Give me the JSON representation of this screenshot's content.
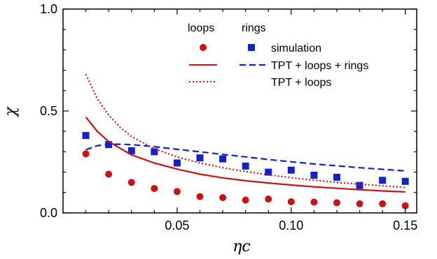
{
  "chart_data": {
    "type": "scatter",
    "xlabel": "ηc",
    "ylabel": "χ",
    "xlim": [
      0.0,
      0.155
    ],
    "ylim": [
      0.0,
      1.0
    ],
    "x_ticks": [
      0.05,
      0.1,
      0.15
    ],
    "x_tick_labels": [
      "0.05",
      "0.10",
      "0.15"
    ],
    "y_ticks": [
      0.0,
      0.5,
      1.0
    ],
    "y_tick_labels": [
      "0.0",
      "0.5",
      "1.0"
    ],
    "legend_column_headers": [
      "loops",
      "rings"
    ],
    "legend_entries": [
      "simulation",
      "TPT + loops + rings",
      "TPT + loops"
    ],
    "colors": {
      "loops": "#cc1111",
      "rings": "#1122cc"
    },
    "series": [
      {
        "group": "loops",
        "kind": "simulation",
        "x": [
          0.01,
          0.02,
          0.03,
          0.04,
          0.05,
          0.06,
          0.07,
          0.08,
          0.09,
          0.1,
          0.11,
          0.12,
          0.13,
          0.14,
          0.15
        ],
        "y": [
          0.29,
          0.19,
          0.15,
          0.12,
          0.105,
          0.08,
          0.075,
          0.063,
          0.068,
          0.055,
          0.053,
          0.05,
          0.045,
          0.045,
          0.035
        ]
      },
      {
        "group": "rings",
        "kind": "simulation",
        "x": [
          0.01,
          0.02,
          0.03,
          0.04,
          0.05,
          0.06,
          0.07,
          0.08,
          0.09,
          0.1,
          0.11,
          0.12,
          0.13,
          0.14,
          0.15
        ],
        "y": [
          0.38,
          0.335,
          0.305,
          0.3,
          0.245,
          0.27,
          0.265,
          0.23,
          0.2,
          0.21,
          0.185,
          0.175,
          0.135,
          0.16,
          0.155
        ]
      },
      {
        "group": "loops",
        "kind": "TPT + loops + rings",
        "x": [
          0.01,
          0.015,
          0.02,
          0.03,
          0.04,
          0.05,
          0.06,
          0.07,
          0.08,
          0.09,
          0.1,
          0.11,
          0.12,
          0.13,
          0.14,
          0.15
        ],
        "y": [
          0.47,
          0.4,
          0.35,
          0.285,
          0.245,
          0.215,
          0.19,
          0.172,
          0.158,
          0.147,
          0.137,
          0.128,
          0.121,
          0.114,
          0.108,
          0.103
        ]
      },
      {
        "group": "rings",
        "kind": "TPT + loops + rings",
        "x": [
          0.01,
          0.015,
          0.02,
          0.025,
          0.03,
          0.04,
          0.05,
          0.06,
          0.07,
          0.08,
          0.09,
          0.1,
          0.11,
          0.12,
          0.13,
          0.14,
          0.15
        ],
        "y": [
          0.31,
          0.33,
          0.337,
          0.337,
          0.335,
          0.325,
          0.312,
          0.3,
          0.287,
          0.275,
          0.262,
          0.251,
          0.24,
          0.231,
          0.222,
          0.214,
          0.206
        ]
      },
      {
        "group": "loops",
        "kind": "TPT + loops",
        "x": [
          0.01,
          0.015,
          0.02,
          0.025,
          0.03,
          0.04,
          0.05,
          0.06,
          0.07,
          0.08,
          0.09,
          0.1,
          0.11,
          0.12,
          0.13,
          0.14,
          0.15
        ],
        "y": [
          0.68,
          0.56,
          0.48,
          0.42,
          0.375,
          0.315,
          0.275,
          0.245,
          0.222,
          0.203,
          0.187,
          0.173,
          0.161,
          0.15,
          0.141,
          0.133,
          0.125
        ]
      }
    ]
  }
}
